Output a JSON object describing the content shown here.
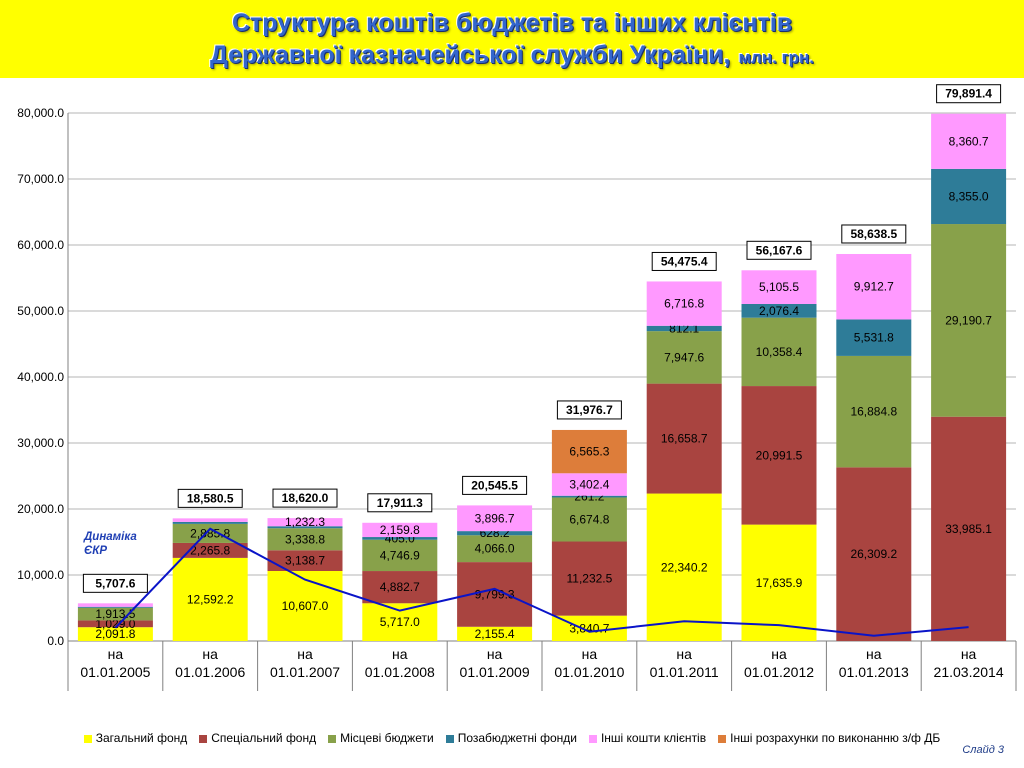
{
  "header": {
    "title_line1": "Структура коштів бюджетів та інших клієнтів",
    "title_line2": "Державної казначейської служби України,",
    "unit": "млн. грн."
  },
  "slide_label": "Слайд 3",
  "dynamics_label": [
    "Динаміка",
    "ЄКР"
  ],
  "colors": {
    "general": "#ffff00",
    "special": "#a94440",
    "local": "#88a14a",
    "extrabudget": "#2e7c98",
    "other": "#ff99ff",
    "settlements": "#dd7d3a",
    "line": "#0a14c8",
    "banner": "#ffff00"
  },
  "chart_data": {
    "type": "bar",
    "stacked": true,
    "y_range": [
      0,
      80000
    ],
    "y_ticks": [
      "0.0",
      "10,000.0",
      "20,000.0",
      "30,000.0",
      "40,000.0",
      "50,000.0",
      "60,000.0",
      "70,000.0",
      "80,000.0"
    ],
    "categories": [
      [
        "на",
        "01.01.2005"
      ],
      [
        "на",
        "01.01.2006"
      ],
      [
        "на",
        "01.01.2007"
      ],
      [
        "на",
        "01.01.2008"
      ],
      [
        "на",
        "01.01.2009"
      ],
      [
        "на",
        "01.01.2010"
      ],
      [
        "на",
        "01.01.2011"
      ],
      [
        "на",
        "01.01.2012"
      ],
      [
        "на",
        "01.01.2013"
      ],
      [
        "на",
        "21.03.2014"
      ]
    ],
    "series": [
      {
        "name": "Загальний фонд",
        "color": "#ffff00",
        "values": [
          2091.8,
          12592.2,
          10607.0,
          5717.0,
          2155.4,
          3840.7,
          22340.2,
          17635.9,
          0,
          0
        ],
        "labels": [
          "2,091.8",
          "12,592.2",
          "10,607.0",
          "5,717.0",
          "2,155.4",
          "3,840.7",
          "22,340.2",
          "17,635.9",
          "",
          ""
        ]
      },
      {
        "name": "Спеціальний фонд",
        "color": "#a94440",
        "values": [
          1029.0,
          2265.8,
          3138.7,
          4882.7,
          9799.3,
          11232.5,
          16658.7,
          20991.5,
          26309.2,
          33985.1
        ],
        "labels": [
          "1,029.0",
          "2,265.8",
          "3,138.7",
          "4,882.7",
          "9,799.3",
          "11,232.5",
          "16,658.7",
          "20,991.5",
          "26,309.2",
          "33,985.1"
        ]
      },
      {
        "name": "Місцеві бюджети",
        "color": "#88a14a",
        "values": [
          1913.5,
          2885.8,
          3338.8,
          4746.9,
          4066.0,
          6674.8,
          7947.6,
          10358.4,
          16884.8,
          29190.7
        ],
        "labels": [
          "1,913.5",
          "2,885.8",
          "3,338.8",
          "4,746.9",
          "4,066.0",
          "6,674.8",
          "7,947.6",
          "10,358.4",
          "16,884.8",
          "29,190.7"
        ]
      },
      {
        "name": "Позабюджетні фонди",
        "color": "#2e7c98",
        "values": [
          150,
          300,
          303.2,
          405.0,
          628.2,
          261.2,
          812.1,
          2076.4,
          5531.8,
          8355.0
        ],
        "labels": [
          "",
          "",
          "",
          "405.0",
          "628.2",
          "261.2",
          "812.1",
          "2,076.4",
          "5,531.8",
          "8,355.0"
        ]
      },
      {
        "name": "Інші кошти клієнтів",
        "color": "#ff99ff",
        "values": [
          523.3,
          536.7,
          1232.3,
          2159.8,
          3896.7,
          3402.4,
          6716.8,
          5105.5,
          9912.7,
          8360.7
        ],
        "labels": [
          "",
          "",
          "1,232.3",
          "2,159.8",
          "3,896.7",
          "3,402.4",
          "6,716.8",
          "5,105.5",
          "9,912.7",
          "8,360.7"
        ]
      },
      {
        "name": "Інші розрахунки по виконанню з/ф ДБ",
        "color": "#dd7d3a",
        "values": [
          0,
          0,
          0,
          0,
          0,
          6565.3,
          0,
          0,
          0,
          0
        ],
        "labels": [
          "",
          "",
          "",
          "",
          "",
          "6,565.3",
          "",
          "",
          "",
          ""
        ]
      }
    ],
    "totals": [
      "5,707.6",
      "18,580.5",
      "18,620.0",
      "17,911.3",
      "20,545.5",
      "31,976.7",
      "54,475.4",
      "56,167.6",
      "58,638.5",
      "79,891.4"
    ],
    "line_series": {
      "name": "Динаміка ЄКР",
      "values": [
        2000,
        17000,
        9300,
        4600,
        7900,
        1400,
        3000,
        2400,
        800,
        2100
      ]
    }
  }
}
